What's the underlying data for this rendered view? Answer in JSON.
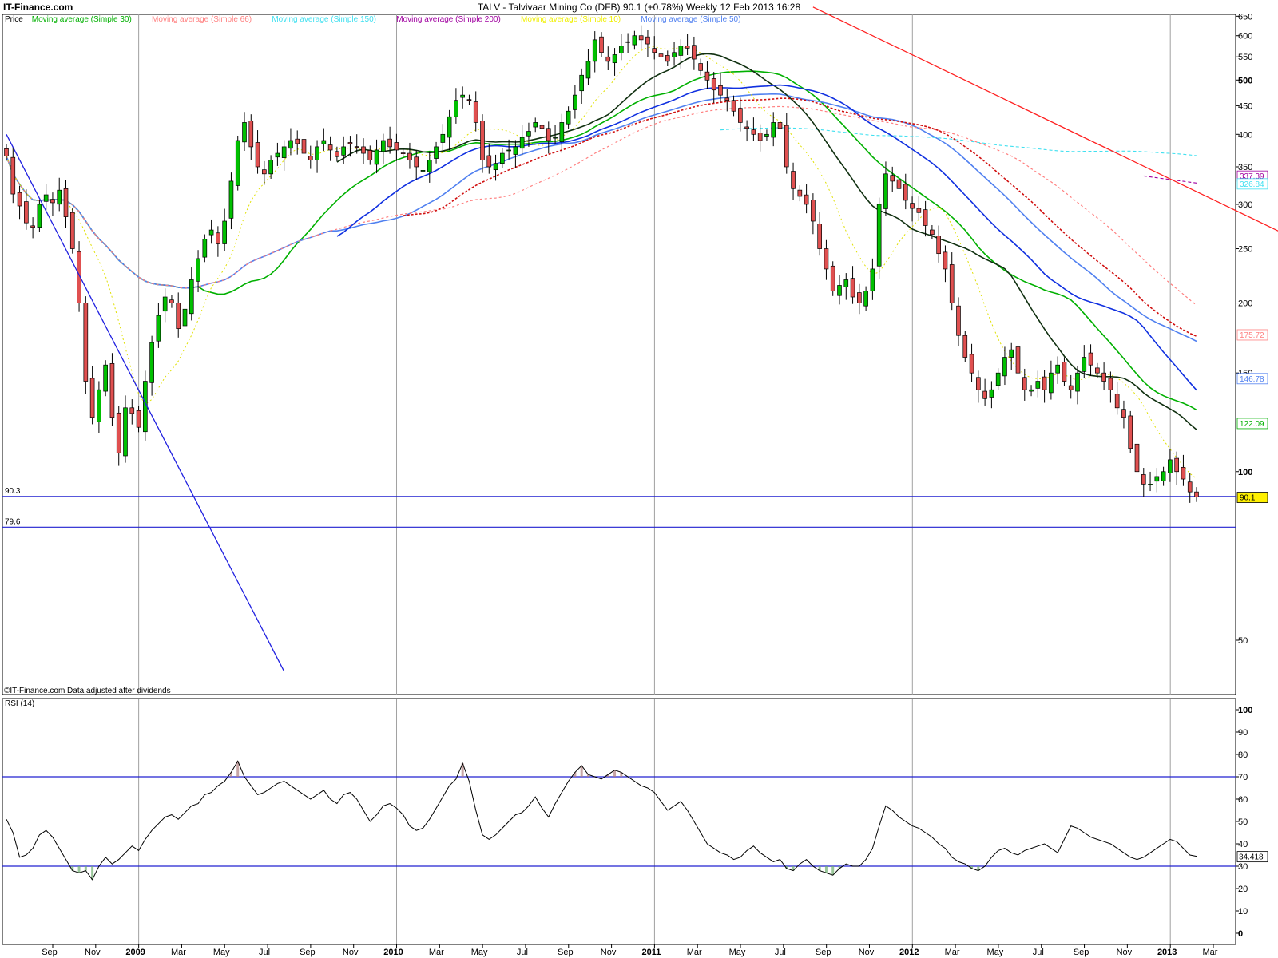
{
  "header": {
    "site": "IT-Finance.com",
    "title": "TALV - Talvivaar Mining Co (DFB)   90.1 (+0.78%)   Weekly  12 Feb 2013 16:28"
  },
  "legend": [
    {
      "label": "Price",
      "color": "#000000"
    },
    {
      "label": "Moving average (Simple 30)",
      "color": "#00b000"
    },
    {
      "label": "Moving average (Simple 66)",
      "color": "#ff8080"
    },
    {
      "label": "Moving average (Simple 150)",
      "color": "#40e0f0"
    },
    {
      "label": "Moving average (Simple 200)",
      "color": "#a000a0"
    },
    {
      "label": "Moving average (Simple 10)",
      "color": "#f0f000"
    },
    {
      "label": "Moving average (Simple 50)",
      "color": "#5080f0"
    }
  ],
  "footer_note": "©IT-Finance.com   Data adjusted after dividends",
  "rsi_label": "RSI (14)",
  "colors": {
    "up": "#00c000",
    "down": "#e05050",
    "trend_red": "#ff2020",
    "trend_blue": "#2020e0",
    "h_lines": "#2020d0",
    "ma_dark": "#103010",
    "ma_blue": "#1030e0",
    "ma_red": "#d01010"
  },
  "chart_data": [
    {
      "type": "candlestick",
      "interval": "weekly",
      "y_axis": {
        "ticks": [
          50,
          100,
          150,
          200,
          250,
          300,
          350,
          400,
          450,
          500,
          550,
          600,
          650
        ],
        "ylim": [
          40,
          655
        ],
        "log": true
      },
      "x_axis": {
        "tick_labels": [
          "Sep",
          "Nov",
          "2009",
          "Mar",
          "May",
          "Jul",
          "Sep",
          "Nov",
          "2010",
          "Mar",
          "May",
          "Jul",
          "Sep",
          "Nov",
          "2011",
          "Mar",
          "May",
          "Jul",
          "Sep",
          "Nov",
          "2012",
          "Mar",
          "May",
          "Jul",
          "Sep",
          "Nov",
          "2013",
          "Mar"
        ],
        "bold_labels": [
          "2009",
          "2010",
          "2011",
          "2012",
          "2013"
        ]
      },
      "horizontal_lines": [
        {
          "label": "90.3",
          "value": 90.3
        },
        {
          "label": "79.6",
          "value": 79.6
        }
      ],
      "trendlines": [
        {
          "name": "red",
          "from": {
            "week": 122,
            "value": 675
          },
          "to": {
            "week": 238,
            "value": 148
          }
        },
        {
          "name": "blue",
          "from": {
            "week": 0,
            "value": 400
          },
          "to": {
            "week": 42,
            "value": 44
          }
        }
      ],
      "last_value_labels": [
        {
          "text": "337.39",
          "color": "#a000a0"
        },
        {
          "text": "326.84",
          "color": "#40e0f0"
        },
        {
          "text": "175.72",
          "color": "#ff8080"
        },
        {
          "text": "146.78",
          "color": "#5080f0"
        },
        {
          "text": "122.09",
          "color": "#00b000"
        },
        {
          "text": "90.1",
          "color": "#000000"
        }
      ],
      "closes": [
        366,
        313,
        298,
        278,
        273,
        300,
        312,
        302,
        318,
        285,
        250,
        200,
        145,
        125,
        140,
        155,
        125,
        108,
        130,
        127,
        120,
        145,
        170,
        190,
        205,
        200,
        180,
        195,
        220,
        240,
        260,
        270,
        255,
        280,
        330,
        390,
        420,
        380,
        350,
        340,
        360,
        370,
        380,
        390,
        385,
        370,
        360,
        380,
        390,
        375,
        365,
        380,
        385,
        380,
        370,
        360,
        375,
        390,
        380,
        375,
        370,
        360,
        350,
        345,
        360,
        380,
        400,
        430,
        460,
        470,
        460,
        420,
        360,
        350,
        355,
        370,
        375,
        380,
        395,
        405,
        420,
        410,
        390,
        395,
        420,
        440,
        470,
        510,
        540,
        590,
        560,
        540,
        555,
        575,
        585,
        600,
        590,
        580,
        560,
        550,
        540,
        560,
        575,
        570,
        545,
        520,
        500,
        480,
        470,
        460,
        440,
        420,
        410,
        400,
        390,
        400,
        420,
        410,
        350,
        320,
        310,
        300,
        280,
        250,
        230,
        210,
        215,
        220,
        205,
        200,
        210,
        230,
        300,
        340,
        330,
        320,
        305,
        295,
        290,
        275,
        265,
        245,
        230,
        200,
        175,
        160,
        150,
        140,
        135,
        140,
        150,
        160,
        165,
        150,
        140,
        140,
        145,
        140,
        150,
        155,
        145,
        140,
        150,
        160,
        155,
        150,
        145,
        140,
        130,
        125,
        110,
        100,
        95,
        95,
        98,
        100,
        105,
        100,
        97,
        92,
        90.1
      ],
      "series_last_values": {
        "Moving average (Simple 200)": 337.39,
        "Moving average (Simple 150)": 326.84,
        "Moving average (Simple 66)": 175.72,
        "Moving average (Simple 50)": 146.78,
        "Moving average (Simple 30)": 122.09,
        "Price": 90.1
      }
    },
    {
      "type": "line",
      "name": "RSI (14)",
      "y_axis": {
        "ticks": [
          0,
          10,
          20,
          30,
          40,
          50,
          60,
          70,
          80,
          90,
          100
        ],
        "ylim": [
          -5,
          105
        ]
      },
      "levels": [
        30,
        70
      ],
      "last_value_label": "34.418",
      "values": [
        51,
        45,
        34,
        35,
        38,
        44,
        46,
        43,
        38,
        33,
        28,
        27,
        28,
        24,
        30,
        34,
        31,
        33,
        36,
        39,
        37,
        42,
        46,
        49,
        52,
        53,
        51,
        54,
        57,
        58,
        62,
        63,
        66,
        68,
        72,
        77,
        70,
        66,
        62,
        63,
        65,
        67,
        68,
        66,
        64,
        62,
        60,
        62,
        64,
        60,
        58,
        62,
        63,
        60,
        55,
        50,
        53,
        57,
        58,
        56,
        53,
        48,
        46,
        47,
        51,
        56,
        61,
        66,
        69,
        76,
        68,
        55,
        44,
        42,
        44,
        47,
        50,
        53,
        54,
        57,
        61,
        56,
        52,
        58,
        63,
        68,
        72,
        75,
        71,
        70,
        69,
        71,
        73,
        72,
        70,
        68,
        66,
        65,
        63,
        59,
        55,
        57,
        59,
        55,
        50,
        45,
        40,
        38,
        36,
        35,
        33,
        34,
        37,
        39,
        36,
        34,
        32,
        33,
        29,
        28,
        31,
        33,
        30,
        28,
        27,
        26,
        29,
        31,
        30,
        30,
        33,
        38,
        48,
        57,
        55,
        52,
        50,
        48,
        47,
        45,
        43,
        40,
        38,
        34,
        32,
        31,
        29,
        28,
        30,
        34,
        37,
        38,
        36,
        35,
        37,
        38,
        39,
        40,
        38,
        36,
        42,
        48,
        47,
        45,
        43,
        42,
        41,
        40,
        38,
        36,
        34,
        33,
        34,
        36,
        38,
        40,
        42,
        41,
        38,
        35,
        34.418
      ]
    }
  ]
}
